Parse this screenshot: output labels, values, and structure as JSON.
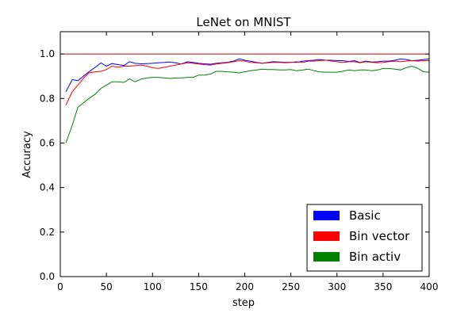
{
  "chart_data": {
    "type": "line",
    "title": "LeNet on MNIST",
    "xlabel": "step",
    "ylabel": "Accuracy",
    "xlim": [
      0,
      400
    ],
    "ylim": [
      0,
      1.1
    ],
    "xticks": [
      0,
      50,
      100,
      150,
      200,
      250,
      300,
      350,
      400
    ],
    "yticks": [
      0.0,
      0.2,
      0.4,
      0.6,
      0.8,
      1.0
    ],
    "grid": false,
    "legend_position": "lower-right",
    "reference_line": {
      "y": 1.0,
      "color": "#c00000"
    },
    "series": [
      {
        "name": "Basic",
        "color": "#0000ff",
        "x": [
          6,
          13,
          19,
          25,
          31,
          38,
          44,
          50,
          56,
          63,
          69,
          75,
          81,
          88,
          94,
          100,
          106,
          113,
          119,
          125,
          131,
          138,
          144,
          150,
          156,
          163,
          169,
          175,
          181,
          188,
          194,
          200,
          206,
          213,
          219,
          225,
          231,
          238,
          244,
          250,
          256,
          263,
          269,
          275,
          281,
          288,
          294,
          300,
          306,
          313,
          319,
          325,
          331,
          338,
          344,
          350,
          356,
          363,
          369,
          375,
          381,
          388,
          394,
          400
        ],
        "values": [
          0.83,
          0.885,
          0.88,
          0.9,
          0.92,
          0.94,
          0.96,
          0.945,
          0.957,
          0.952,
          0.948,
          0.965,
          0.958,
          0.956,
          0.957,
          0.958,
          0.96,
          0.962,
          0.964,
          0.96,
          0.955,
          0.965,
          0.962,
          0.958,
          0.956,
          0.954,
          0.958,
          0.96,
          0.962,
          0.968,
          0.978,
          0.972,
          0.968,
          0.962,
          0.958,
          0.962,
          0.965,
          0.964,
          0.962,
          0.963,
          0.962,
          0.968,
          0.97,
          0.972,
          0.975,
          0.972,
          0.972,
          0.97,
          0.97,
          0.966,
          0.97,
          0.962,
          0.968,
          0.964,
          0.965,
          0.968,
          0.968,
          0.972,
          0.978,
          0.975,
          0.97,
          0.972,
          0.975,
          0.978
        ]
      },
      {
        "name": "Bin vector",
        "color": "#ff0000",
        "x": [
          6,
          13,
          19,
          25,
          31,
          38,
          44,
          50,
          56,
          63,
          69,
          75,
          81,
          88,
          94,
          100,
          106,
          113,
          119,
          125,
          131,
          138,
          144,
          150,
          156,
          163,
          169,
          175,
          181,
          188,
          194,
          200,
          206,
          213,
          219,
          225,
          231,
          238,
          244,
          250,
          256,
          263,
          269,
          275,
          281,
          288,
          294,
          300,
          306,
          313,
          319,
          325,
          331,
          338,
          344,
          350,
          356,
          363,
          369,
          375,
          381,
          388,
          394,
          400
        ],
        "values": [
          0.77,
          0.83,
          0.86,
          0.89,
          0.915,
          0.92,
          0.922,
          0.93,
          0.945,
          0.94,
          0.945,
          0.945,
          0.948,
          0.95,
          0.945,
          0.938,
          0.935,
          0.94,
          0.945,
          0.95,
          0.955,
          0.96,
          0.958,
          0.955,
          0.952,
          0.95,
          0.955,
          0.958,
          0.96,
          0.965,
          0.97,
          0.968,
          0.962,
          0.96,
          0.958,
          0.96,
          0.962,
          0.962,
          0.96,
          0.962,
          0.965,
          0.962,
          0.968,
          0.968,
          0.97,
          0.972,
          0.968,
          0.965,
          0.962,
          0.965,
          0.965,
          0.96,
          0.965,
          0.962,
          0.96,
          0.962,
          0.965,
          0.968,
          0.965,
          0.968,
          0.97,
          0.968,
          0.97,
          0.97
        ]
      },
      {
        "name": "Bin activ",
        "color": "#008000",
        "x": [
          6,
          13,
          19,
          25,
          31,
          38,
          44,
          50,
          56,
          63,
          69,
          75,
          81,
          88,
          94,
          100,
          106,
          113,
          119,
          125,
          131,
          138,
          144,
          150,
          156,
          163,
          169,
          175,
          181,
          188,
          194,
          200,
          206,
          213,
          219,
          225,
          231,
          238,
          244,
          250,
          256,
          263,
          269,
          275,
          281,
          288,
          294,
          300,
          306,
          313,
          319,
          325,
          331,
          338,
          344,
          350,
          356,
          363,
          369,
          375,
          381,
          388,
          394,
          400
        ],
        "values": [
          0.6,
          0.68,
          0.76,
          0.78,
          0.8,
          0.82,
          0.845,
          0.86,
          0.875,
          0.875,
          0.872,
          0.888,
          0.875,
          0.888,
          0.892,
          0.895,
          0.895,
          0.892,
          0.89,
          0.892,
          0.892,
          0.895,
          0.895,
          0.905,
          0.905,
          0.91,
          0.922,
          0.922,
          0.92,
          0.918,
          0.915,
          0.92,
          0.925,
          0.928,
          0.932,
          0.93,
          0.93,
          0.928,
          0.928,
          0.93,
          0.925,
          0.928,
          0.932,
          0.925,
          0.92,
          0.918,
          0.918,
          0.918,
          0.922,
          0.928,
          0.925,
          0.928,
          0.928,
          0.925,
          0.928,
          0.935,
          0.935,
          0.932,
          0.928,
          0.938,
          0.945,
          0.935,
          0.92,
          0.918
        ]
      }
    ]
  }
}
